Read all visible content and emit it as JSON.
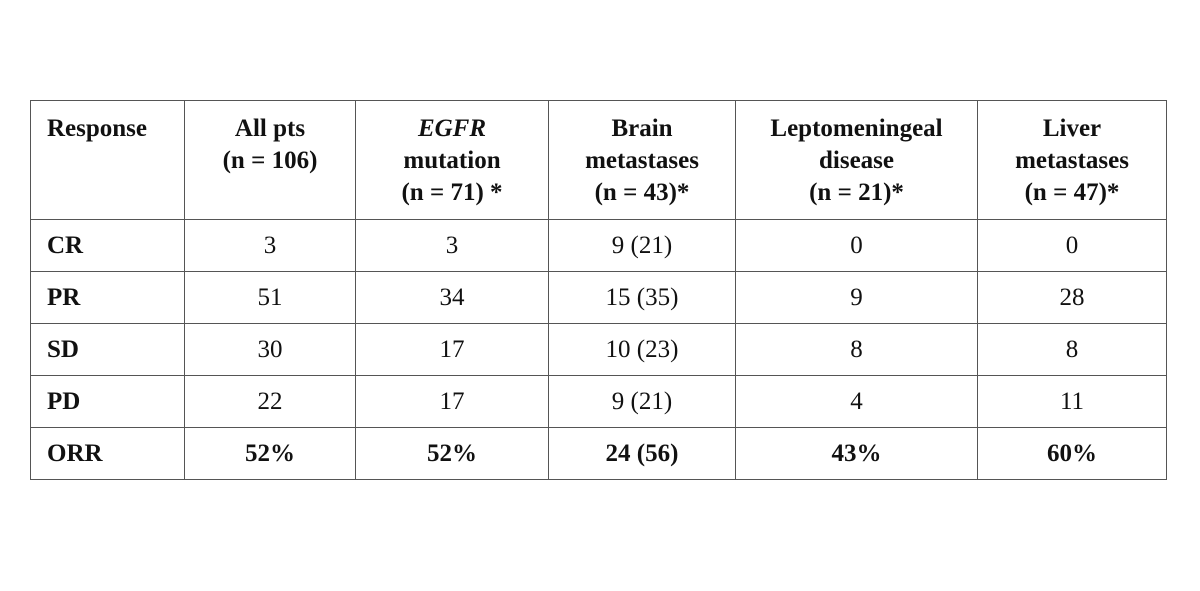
{
  "table": {
    "header": [
      [
        "Response"
      ],
      [
        "All pts",
        "(n = 106)"
      ],
      [
        "EGFR",
        "mutation",
        "(n = 71) *"
      ],
      [
        "Brain",
        "metastases",
        "(n = 43)*"
      ],
      [
        "Leptomeningeal",
        "disease",
        "(n = 21)*"
      ],
      [
        "Liver",
        "metastases",
        "(n = 47)*"
      ]
    ],
    "rows": [
      [
        "CR",
        "3",
        "3",
        "9 (21)",
        "0",
        "0"
      ],
      [
        "PR",
        "51",
        "34",
        "15 (35)",
        "9",
        "28"
      ],
      [
        "SD",
        "30",
        "17",
        "10 (23)",
        "8",
        "8"
      ],
      [
        "PD",
        "22",
        "17",
        "9 (21)",
        "4",
        "11"
      ],
      [
        "ORR",
        "52%",
        "52%",
        "24 (56)",
        "43%",
        "60%"
      ]
    ]
  }
}
